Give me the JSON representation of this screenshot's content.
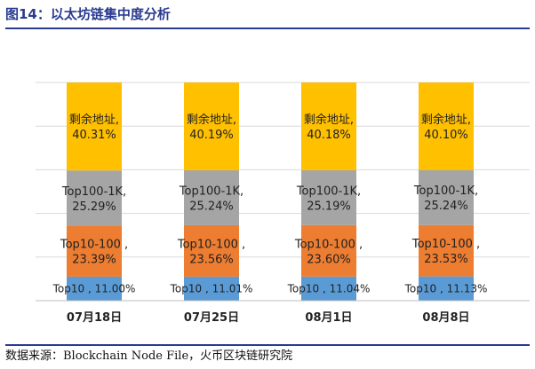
{
  "figure_title": "图14：以太坊链集中度分析",
  "source_note": "数据来源：Blockchain Node File，火币区块链研究院",
  "colors": {
    "remaining": "#FFC000",
    "top100_1k": "#A5A5A5",
    "top10_100": "#ED7D31",
    "top10": "#5B9BD5",
    "title": "#2a3b8f"
  },
  "chart_data": {
    "type": "bar",
    "stacked": true,
    "title": "",
    "xlabel": "",
    "ylabel": "",
    "ylim": [
      0,
      100
    ],
    "grid": true,
    "legend": "none",
    "categories": [
      "07月18日",
      "07月25日",
      "08月1日",
      "08月8日"
    ],
    "series": [
      {
        "key": "top10",
        "color": "#5B9BD5",
        "values": [
          11.0,
          11.01,
          11.04,
          11.13
        ],
        "labels": [
          "Top10 , 11.00%",
          "Top10 , 11.01%",
          "Top10 , 11.04%",
          "Top10 , 11.13%"
        ]
      },
      {
        "key": "top10_100",
        "color": "#ED7D31",
        "values": [
          23.39,
          23.56,
          23.6,
          23.53
        ],
        "label_lines": [
          [
            "Top10-100 ,",
            "23.39%"
          ],
          [
            "Top10-100 ,",
            "23.56%"
          ],
          [
            "Top10-100 ,",
            "23.60%"
          ],
          [
            "Top10-100 ,",
            "23.53%"
          ]
        ]
      },
      {
        "key": "top100_1k",
        "color": "#A5A5A5",
        "values": [
          25.29,
          25.24,
          25.19,
          25.24
        ],
        "label_lines": [
          [
            "Top100-1K,",
            "25.29%"
          ],
          [
            "Top100-1K,",
            "25.24%"
          ],
          [
            "Top100-1K,",
            "25.19%"
          ],
          [
            "Top100-1K,",
            "25.24%"
          ]
        ]
      },
      {
        "key": "remaining",
        "color": "#FFC000",
        "values": [
          40.31,
          40.19,
          40.18,
          40.1
        ],
        "label_lines": [
          [
            "剩余地址,",
            "40.31%"
          ],
          [
            "剩余地址,",
            "40.19%"
          ],
          [
            "剩余地址,",
            "40.18%"
          ],
          [
            "剩余地址,",
            "40.10%"
          ]
        ]
      }
    ]
  }
}
